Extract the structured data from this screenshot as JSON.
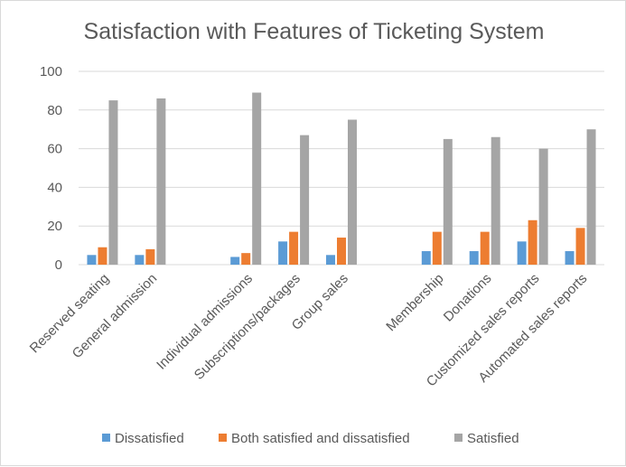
{
  "chart_data": {
    "type": "bar",
    "title": "Satisfaction with Features of Ticketing System",
    "xlabel": "",
    "ylabel": "",
    "ylim": [
      0,
      100
    ],
    "yticks": [
      0,
      20,
      40,
      60,
      80,
      100
    ],
    "grid": true,
    "legend_position": "bottom",
    "categories": [
      "Reserved seating",
      "General admission",
      "",
      "Individual admissions",
      "Subscriptions/packages",
      "Group sales",
      "",
      "Membership",
      "Donations",
      "Customized sales reports",
      "Automated sales reports"
    ],
    "series": [
      {
        "name": "Dissatisfied",
        "color": "#5b9bd5",
        "values": [
          5,
          5,
          null,
          4,
          12,
          5,
          null,
          7,
          7,
          12,
          7
        ]
      },
      {
        "name": "Both satisfied and dissatisfied",
        "color": "#ed7d31",
        "values": [
          9,
          8,
          null,
          6,
          17,
          14,
          null,
          17,
          17,
          23,
          19
        ]
      },
      {
        "name": "Satisfied",
        "color": "#a5a5a5",
        "values": [
          85,
          86,
          null,
          89,
          67,
          75,
          null,
          65,
          66,
          60,
          70
        ]
      }
    ]
  }
}
